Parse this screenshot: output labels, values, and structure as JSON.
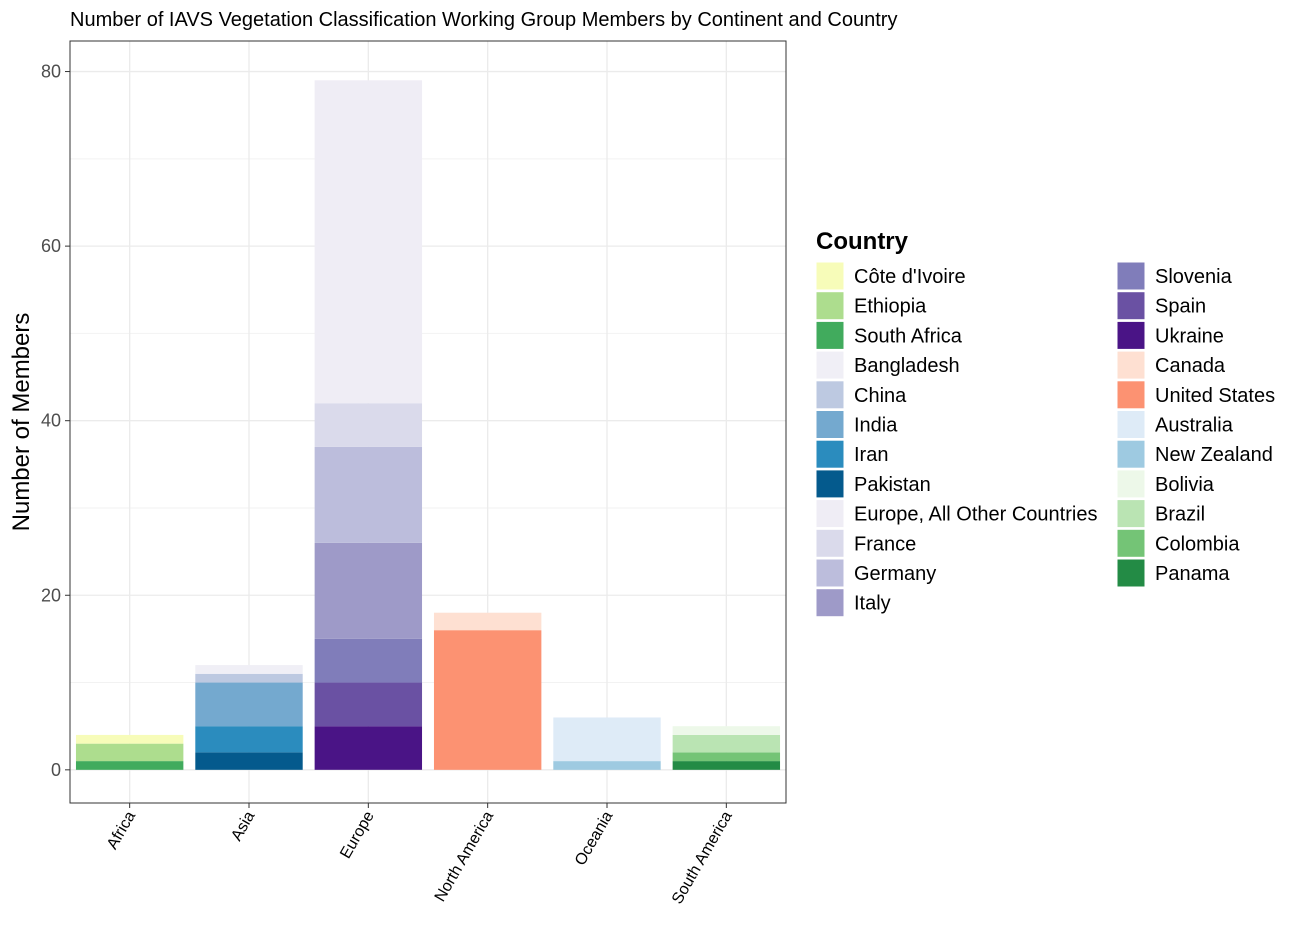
{
  "chart_data": {
    "type": "bar",
    "stacked": true,
    "title": "Number of IAVS Vegetation Classification Working Group Members by Continent and Country",
    "xlabel": "",
    "ylabel": "Number of Members",
    "ylim": [
      -3.8,
      83.5
    ],
    "yticks": [
      0,
      20,
      40,
      60,
      80
    ],
    "grid": true,
    "legend": {
      "title": "Country",
      "position": "right"
    },
    "categories": [
      "Africa",
      "Asia",
      "Europe",
      "North America",
      "Oceania",
      "South America"
    ],
    "series": [
      {
        "name": "Côte d'Ivoire",
        "category": "Africa",
        "value": 1,
        "color": "#F7FCB9"
      },
      {
        "name": "Ethiopia",
        "category": "Africa",
        "value": 2,
        "color": "#ADDD8E"
      },
      {
        "name": "South Africa",
        "category": "Africa",
        "value": 1,
        "color": "#41AB5D"
      },
      {
        "name": "Bangladesh",
        "category": "Asia",
        "value": 1,
        "color": "#F0EFF6"
      },
      {
        "name": "China",
        "category": "Asia",
        "value": 1,
        "color": "#BDC9E1"
      },
      {
        "name": "India",
        "category": "Asia",
        "value": 5,
        "color": "#74A9CF"
      },
      {
        "name": "Iran",
        "category": "Asia",
        "value": 3,
        "color": "#2B8CBE"
      },
      {
        "name": "Pakistan",
        "category": "Asia",
        "value": 2,
        "color": "#045A8D"
      },
      {
        "name": "Europe, All Other Countries",
        "category": "Europe",
        "value": 37,
        "color": "#EFEDF5"
      },
      {
        "name": "France",
        "category": "Europe",
        "value": 5,
        "color": "#DADAEB"
      },
      {
        "name": "Germany",
        "category": "Europe",
        "value": 11,
        "color": "#BCBDDC"
      },
      {
        "name": "Italy",
        "category": "Europe",
        "value": 11,
        "color": "#9E9AC8"
      },
      {
        "name": "Slovenia",
        "category": "Europe",
        "value": 5,
        "color": "#807DBA"
      },
      {
        "name": "Spain",
        "category": "Europe",
        "value": 5,
        "color": "#6A51A3"
      },
      {
        "name": "Ukraine",
        "category": "Europe",
        "value": 5,
        "color": "#4A1486"
      },
      {
        "name": "Canada",
        "category": "North America",
        "value": 2,
        "color": "#FEE0D2"
      },
      {
        "name": "United States",
        "category": "North America",
        "value": 16,
        "color": "#FC9272"
      },
      {
        "name": "Australia",
        "category": "Oceania",
        "value": 5,
        "color": "#DEEBF7"
      },
      {
        "name": "New Zealand",
        "category": "Oceania",
        "value": 1,
        "color": "#9ECAE1"
      },
      {
        "name": "Bolivia",
        "category": "South America",
        "value": 1,
        "color": "#EDF8E9"
      },
      {
        "name": "Brazil",
        "category": "South America",
        "value": 2,
        "color": "#BAE4B3"
      },
      {
        "name": "Colombia",
        "category": "South America",
        "value": 1,
        "color": "#74C476"
      },
      {
        "name": "Panama",
        "category": "South America",
        "value": 1,
        "color": "#238B45"
      }
    ]
  }
}
